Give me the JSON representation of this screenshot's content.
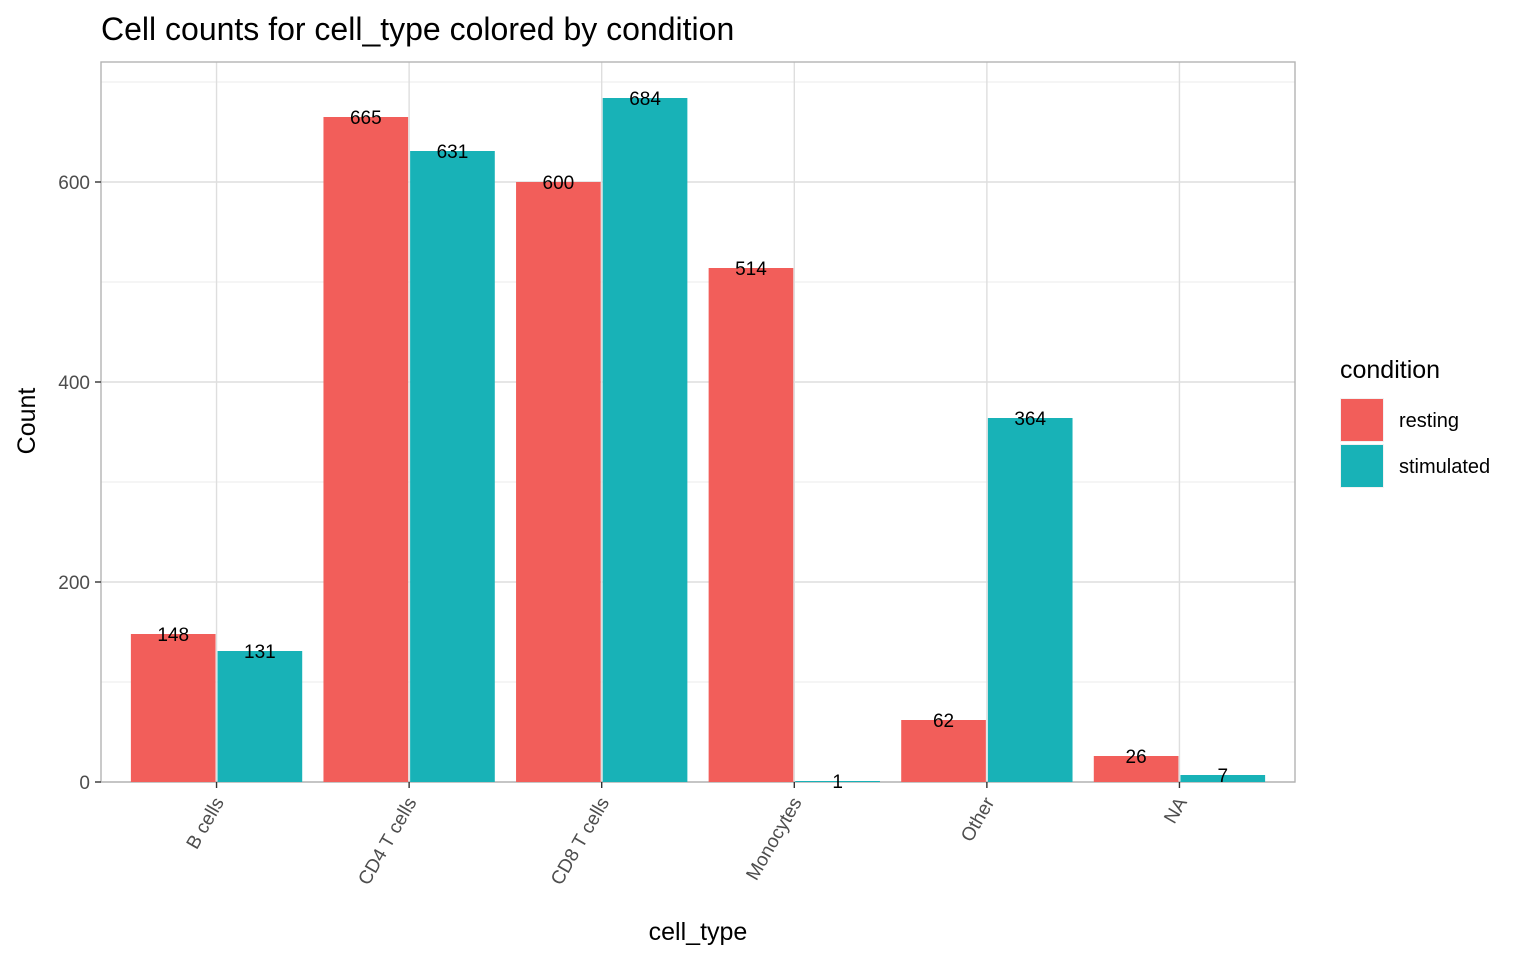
{
  "chart_data": {
    "type": "bar",
    "title": "Cell counts for cell_type colored by condition",
    "xlabel": "cell_type",
    "ylabel": "Count",
    "categories": [
      "B cells",
      "CD4 T cells",
      "CD8 T cells",
      "Monocytes",
      "Other",
      "NA"
    ],
    "series": [
      {
        "name": "resting",
        "color": "#F8766D",
        "values": [
          148,
          665,
          600,
          514,
          62,
          26
        ]
      },
      {
        "name": "stimulated",
        "color": "#00BFC4",
        "values": [
          131,
          631,
          684,
          1,
          364,
          7
        ]
      }
    ],
    "ylim": [
      0,
      720
    ],
    "yticks": [
      0,
      200,
      400,
      600
    ],
    "grid": true,
    "legend": {
      "title": "condition",
      "placement": "right"
    },
    "bar_colors": {
      "resting": "#F25E5A",
      "stimulated": "#18B2B7"
    }
  }
}
